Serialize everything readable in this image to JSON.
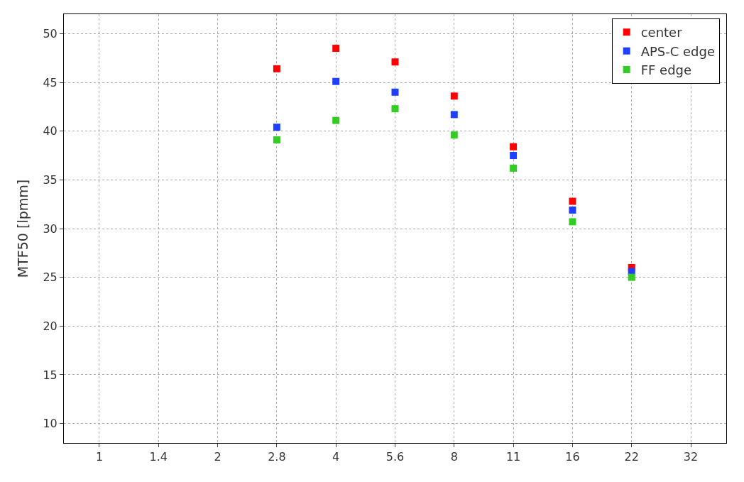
{
  "chart_data": {
    "type": "scatter",
    "ylabel": "MTF50 [lpmm]",
    "categories": [
      "1",
      "1.4",
      "2",
      "2.8",
      "4",
      "5.6",
      "8",
      "11",
      "16",
      "22",
      "32"
    ],
    "series": [
      {
        "name": "center",
        "color": "#ff0000",
        "values": [
          null,
          null,
          null,
          46.4,
          48.5,
          47.1,
          43.6,
          38.4,
          32.8,
          26.0,
          null
        ]
      },
      {
        "name": "APS-C edge",
        "color": "#1f3fff",
        "values": [
          null,
          null,
          null,
          40.4,
          45.1,
          44.0,
          41.7,
          37.5,
          31.9,
          25.6,
          null
        ]
      },
      {
        "name": "FF edge",
        "color": "#33cc22",
        "values": [
          null,
          null,
          null,
          39.1,
          41.1,
          42.3,
          39.6,
          36.2,
          30.7,
          25.0,
          null
        ]
      }
    ],
    "ylim": [
      8,
      52
    ],
    "yticks": [
      10,
      15,
      20,
      25,
      30,
      35,
      40,
      45,
      50
    ],
    "grid": true,
    "legend": "top right",
    "marker": "square"
  }
}
